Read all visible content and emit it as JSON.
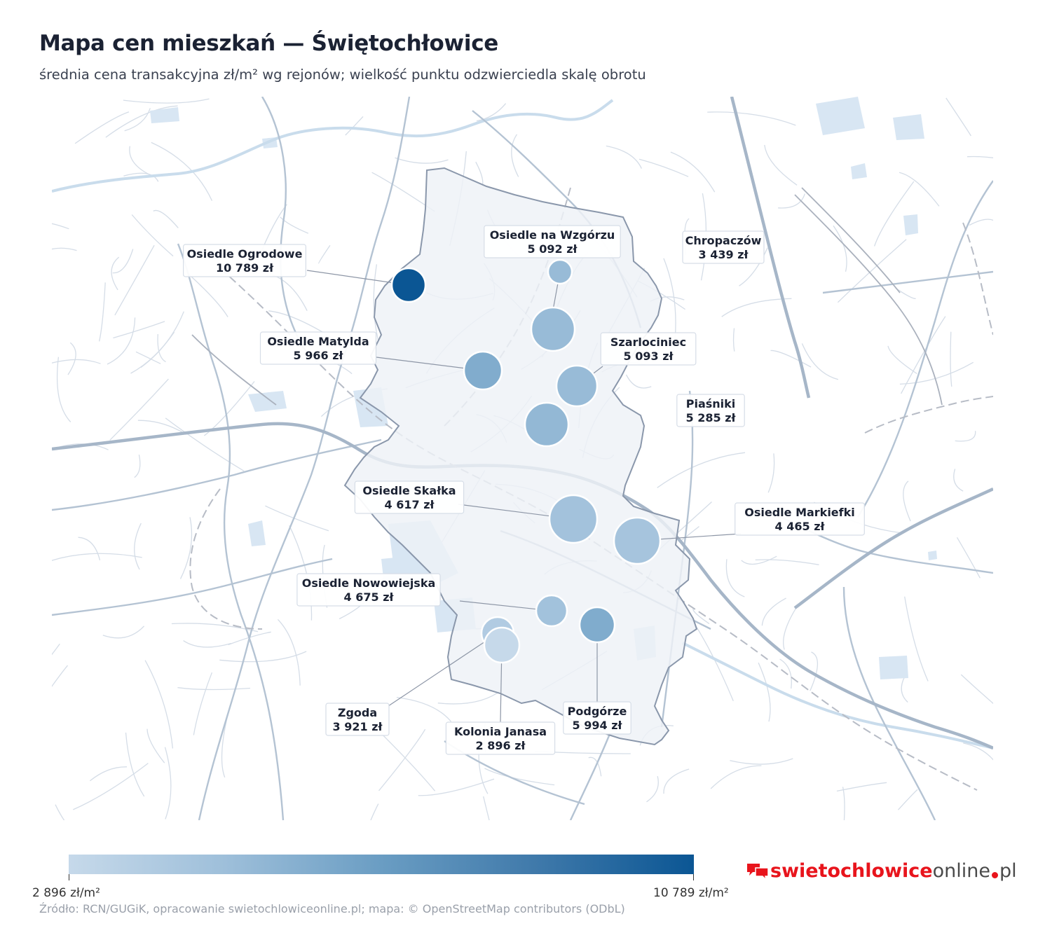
{
  "title": "Mapa cen mieszkań — Świętochłowice",
  "subtitle": "średnia cena transakcyjna zł/m² wg rejonów; wielkość punktu odzwierciedla skalę obrotu",
  "colors": {
    "min": "#c6d9ea",
    "max": "#0b5694",
    "district_fill": "#eef2f7",
    "district_stroke": "#8a97ab",
    "roads": "#b8c6d6",
    "water": "#d3e3f1"
  },
  "districts": [
    {
      "name": "Osiedle Ogrodowe",
      "price_label": "10 789 zł",
      "price": 10789
    },
    {
      "name": "Osiedle na Wzgórzu",
      "price_label": "5 092 zł",
      "price": 5092
    },
    {
      "name": "Chropaczów",
      "price_label": "3 439 zł",
      "price": 3439
    },
    {
      "name": "Osiedle Matylda",
      "price_label": "5 966 zł",
      "price": 5966
    },
    {
      "name": "Szarlociniec",
      "price_label": "5 093 zł",
      "price": 5093
    },
    {
      "name": "Piaśniki",
      "price_label": "5 285 zł",
      "price": 5285
    },
    {
      "name": "Osiedle Skałka",
      "price_label": "4 617 zł",
      "price": 4617
    },
    {
      "name": "Osiedle Markiefki",
      "price_label": "4 465 zł",
      "price": 4465
    },
    {
      "name": "Osiedle Nowowiejska",
      "price_label": "4 675 zł",
      "price": 4675
    },
    {
      "name": "Zgoda",
      "price_label": "3 921 zł",
      "price": 3921
    },
    {
      "name": "Kolonia Janasa",
      "price_label": "2 896 zł",
      "price": 2896
    },
    {
      "name": "Podgórze",
      "price_label": "5 994 zł",
      "price": 5994
    }
  ],
  "colorbar": {
    "min_label": "2 896 zł/m²",
    "max_label": "10 789 zł/m²"
  },
  "source": "Źródło: RCN/GUGiK, opracowanie swietochlowiceonline.pl; mapa: © OpenStreetMap contributors (ODbL)",
  "brand": {
    "part1": "swietochlowice",
    "part2": "online",
    "part3": "pl",
    "icon": "chat-bubbles-icon"
  }
}
